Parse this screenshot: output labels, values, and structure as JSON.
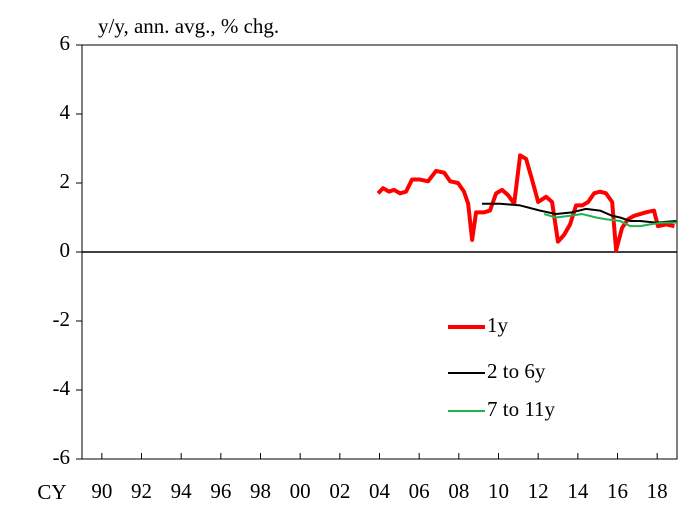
{
  "chart_data": {
    "type": "line",
    "title": "y/y, ann. avg., % chg.",
    "x_label": "CY",
    "xlim": [
      1989,
      2019
    ],
    "xticks": [
      {
        "value": 1990,
        "label": "90"
      },
      {
        "value": 1992,
        "label": "92"
      },
      {
        "value": 1994,
        "label": "94"
      },
      {
        "value": 1996,
        "label": "96"
      },
      {
        "value": 1998,
        "label": "98"
      },
      {
        "value": 2000,
        "label": "00"
      },
      {
        "value": 2002,
        "label": "02"
      },
      {
        "value": 2004,
        "label": "04"
      },
      {
        "value": 2006,
        "label": "06"
      },
      {
        "value": 2008,
        "label": "08"
      },
      {
        "value": 2010,
        "label": "10"
      },
      {
        "value": 2012,
        "label": "12"
      },
      {
        "value": 2014,
        "label": "14"
      },
      {
        "value": 2016,
        "label": "16"
      },
      {
        "value": 2018,
        "label": "18"
      }
    ],
    "ylim": [
      -6,
      6
    ],
    "yticks": [
      -6,
      -4,
      -2,
      0,
      2,
      4,
      6
    ],
    "grid": false,
    "legend": "lower right",
    "series": [
      {
        "name": "1y",
        "color": "#ff0000",
        "x": [
          2003.93,
          2004.18,
          2004.48,
          2004.73,
          2005.04,
          2005.34,
          2005.64,
          2006.04,
          2006.45,
          2006.85,
          2007.26,
          2007.56,
          2007.96,
          2008.26,
          2008.47,
          2008.67,
          2008.87,
          2009.27,
          2009.57,
          2009.88,
          2010.18,
          2010.48,
          2010.79,
          2011.09,
          2011.39,
          2011.69,
          2012.0,
          2012.4,
          2012.7,
          2013.0,
          2013.31,
          2013.61,
          2013.91,
          2014.22,
          2014.52,
          2014.82,
          2015.12,
          2015.42,
          2015.73,
          2015.93,
          2016.23,
          2016.53,
          2016.84,
          2017.14,
          2017.44,
          2017.84,
          2018.04,
          2018.45,
          2018.87
        ],
        "values": [
          1.7,
          1.85,
          1.75,
          1.8,
          1.7,
          1.75,
          2.1,
          2.1,
          2.05,
          2.35,
          2.3,
          2.05,
          2.0,
          1.75,
          1.4,
          0.35,
          1.15,
          1.15,
          1.2,
          1.7,
          1.8,
          1.65,
          1.4,
          2.8,
          2.7,
          2.1,
          1.45,
          1.6,
          1.45,
          0.3,
          0.5,
          0.8,
          1.35,
          1.35,
          1.45,
          1.7,
          1.75,
          1.7,
          1.45,
          0.05,
          0.7,
          0.95,
          1.05,
          1.1,
          1.15,
          1.2,
          0.75,
          0.8,
          0.75
        ]
      },
      {
        "name": "2 to 6y",
        "color": "#000000",
        "x": [
          2009.17,
          2010.08,
          2011.09,
          2012.1,
          2012.9,
          2013.71,
          2014.41,
          2015.12,
          2015.73,
          2016.13,
          2016.64,
          2017.14,
          2017.95,
          2018.96
        ],
        "values": [
          1.4,
          1.4,
          1.35,
          1.2,
          1.1,
          1.15,
          1.25,
          1.2,
          1.05,
          1.0,
          0.9,
          0.9,
          0.85,
          0.9
        ]
      },
      {
        "name": "7 to 11y",
        "color": "#22b14c",
        "x": [
          2012.3,
          2012.9,
          2013.61,
          2014.22,
          2014.92,
          2015.42,
          2016.13,
          2016.64,
          2017.14,
          2017.64,
          2018.25,
          2018.96
        ],
        "values": [
          1.1,
          1.0,
          1.05,
          1.1,
          1.0,
          0.95,
          0.9,
          0.75,
          0.75,
          0.8,
          0.85,
          0.85
        ]
      }
    ]
  }
}
